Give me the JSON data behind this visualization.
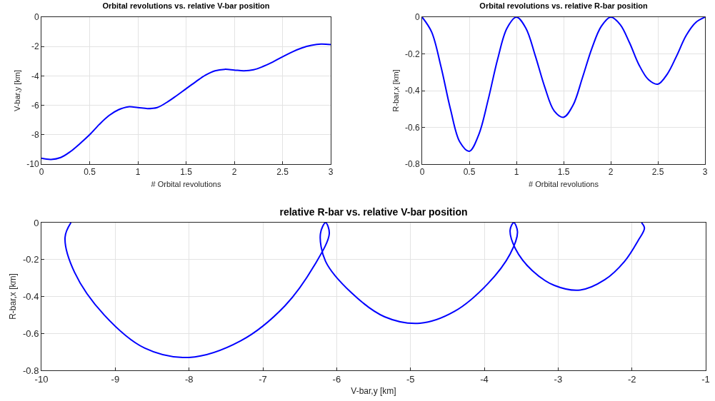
{
  "chart_data": [
    {
      "type": "line",
      "title": "Orbital revolutions vs. relative V-bar position",
      "xlabel": "# Orbital revolutions",
      "ylabel": "V-bar,y [km]",
      "x": [
        0,
        0.1,
        0.2,
        0.3,
        0.4,
        0.5,
        0.6,
        0.7,
        0.8,
        0.9,
        1,
        1.1,
        1.2,
        1.3,
        1.4,
        1.5,
        1.6,
        1.7,
        1.8,
        1.9,
        2,
        2.1,
        2.2,
        2.3,
        2.4,
        2.5,
        2.6,
        2.7,
        2.8,
        2.9,
        3
      ],
      "series": [
        {
          "color": "#0000ff",
          "values": [
            -9.6,
            -9.68,
            -9.55,
            -9.15,
            -8.6,
            -8.0,
            -7.3,
            -6.7,
            -6.3,
            -6.1,
            -6.15,
            -6.22,
            -6.15,
            -5.8,
            -5.35,
            -4.87,
            -4.4,
            -3.95,
            -3.65,
            -3.55,
            -3.6,
            -3.65,
            -3.58,
            -3.35,
            -3.05,
            -2.7,
            -2.37,
            -2.1,
            -1.92,
            -1.83,
            -1.87
          ]
        }
      ],
      "xlim": [
        0,
        3
      ],
      "xticks": [
        0,
        0.5,
        1,
        1.5,
        2,
        2.5,
        3
      ],
      "ylim": [
        -10,
        0
      ],
      "yticks": [
        -10,
        -8,
        -6,
        -4,
        -2,
        0
      ],
      "grid": true,
      "marker": "none",
      "line_style": "solid"
    },
    {
      "type": "line",
      "title": "Orbital revolutions vs. relative R-bar position",
      "xlabel": "# Orbital revolutions",
      "ylabel": "R-bar,x [km]",
      "x": [
        0,
        0.1,
        0.2,
        0.3,
        0.4,
        0.5,
        0.6,
        0.7,
        0.8,
        0.9,
        1,
        1.1,
        1.2,
        1.3,
        1.4,
        1.5,
        1.6,
        1.7,
        1.8,
        1.9,
        2,
        2.1,
        2.2,
        2.3,
        2.4,
        2.5,
        2.6,
        2.7,
        2.8,
        2.9,
        3
      ],
      "series": [
        {
          "color": "#0000ff",
          "values": [
            0,
            -0.08,
            -0.27,
            -0.5,
            -0.68,
            -0.73,
            -0.64,
            -0.45,
            -0.23,
            -0.06,
            0,
            -0.06,
            -0.21,
            -0.38,
            -0.51,
            -0.545,
            -0.48,
            -0.33,
            -0.17,
            -0.05,
            0,
            -0.04,
            -0.14,
            -0.26,
            -0.34,
            -0.365,
            -0.31,
            -0.21,
            -0.1,
            -0.03,
            0
          ]
        }
      ],
      "xlim": [
        0,
        3
      ],
      "xticks": [
        0,
        0.5,
        1,
        1.5,
        2,
        2.5,
        3
      ],
      "ylim": [
        -0.8,
        0
      ],
      "yticks": [
        -0.8,
        -0.6,
        -0.4,
        -0.2,
        0
      ],
      "grid": true,
      "marker": "none",
      "line_style": "solid"
    },
    {
      "type": "line",
      "title": "relative R-bar vs. relative V-bar position",
      "xlabel": "V-bar,y [km]",
      "ylabel": "R-bar,x [km]",
      "x": [
        -9.6,
        -9.68,
        -9.55,
        -9.15,
        -8.6,
        -8.0,
        -7.3,
        -6.7,
        -6.3,
        -6.1,
        -6.15,
        -6.22,
        -6.15,
        -5.8,
        -5.35,
        -4.87,
        -4.4,
        -3.95,
        -3.65,
        -3.55,
        -3.6,
        -3.65,
        -3.58,
        -3.35,
        -3.05,
        -2.7,
        -2.37,
        -2.1,
        -1.92,
        -1.83,
        -1.87
      ],
      "series": [
        {
          "color": "#0000ff",
          "values": [
            0,
            -0.08,
            -0.27,
            -0.5,
            -0.68,
            -0.73,
            -0.64,
            -0.45,
            -0.23,
            -0.06,
            0,
            -0.06,
            -0.21,
            -0.38,
            -0.51,
            -0.545,
            -0.48,
            -0.33,
            -0.17,
            -0.05,
            0,
            -0.04,
            -0.14,
            -0.26,
            -0.34,
            -0.365,
            -0.31,
            -0.21,
            -0.1,
            -0.03,
            0
          ]
        }
      ],
      "xlim": [
        -10,
        -1
      ],
      "xticks": [
        -10,
        -9,
        -8,
        -7,
        -6,
        -5,
        -4,
        -3,
        -2,
        -1
      ],
      "ylim": [
        -0.8,
        0
      ],
      "yticks": [
        -0.8,
        -0.6,
        -0.4,
        -0.2,
        0
      ],
      "grid": true,
      "marker": "none",
      "line_style": "solid"
    }
  ]
}
